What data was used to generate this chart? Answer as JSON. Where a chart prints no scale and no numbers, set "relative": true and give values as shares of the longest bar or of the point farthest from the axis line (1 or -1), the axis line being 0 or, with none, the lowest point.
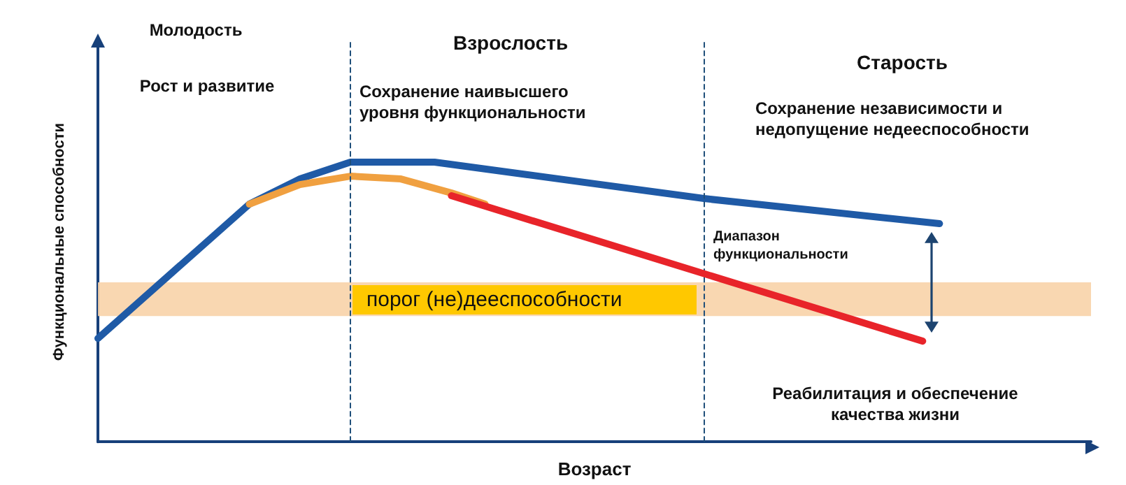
{
  "chart_data": {
    "type": "line",
    "relative": true,
    "xlabel": "Возраст",
    "ylabel": "Функциональные способности",
    "grid": false,
    "line_style": "solid",
    "categories": [
      null,
      null,
      null,
      null,
      null,
      null,
      null,
      null,
      null,
      null,
      null,
      null,
      null,
      null,
      null,
      null,
      null,
      null,
      null,
      null,
      null,
      null,
      null,
      null,
      null,
      null,
      null,
      null,
      null,
      null,
      null,
      null,
      null,
      null,
      null,
      null,
      null,
      null,
      null,
      null,
      null,
      null,
      null,
      null,
      null,
      null,
      null,
      null,
      null,
      null,
      null,
      null,
      null,
      null,
      null,
      null,
      null,
      null,
      null,
      null
    ],
    "series": [
      {
        "color": "#1f5aa6",
        "values": [
          0.37,
          null,
          null,
          null,
          null,
          null,
          null,
          null,
          null,
          0.85,
          null,
          null,
          0.94,
          null,
          null,
          1,
          null,
          null,
          null,
          null,
          1,
          null,
          null,
          null,
          null,
          null,
          null,
          null,
          null,
          null,
          null,
          null,
          null,
          null,
          null,
          null,
          0.87,
          null,
          null,
          null,
          null,
          null,
          null,
          null,
          null,
          null,
          null,
          null,
          null,
          null,
          0.78,
          null,
          null,
          null,
          null,
          null,
          null,
          null,
          null,
          null
        ]
      },
      {
        "color": "#f0a040",
        "values": [
          null,
          null,
          null,
          null,
          null,
          null,
          null,
          null,
          null,
          0.85,
          null,
          null,
          0.92,
          null,
          null,
          0.95,
          null,
          null,
          0.94,
          null,
          null,
          0.89,
          null,
          0.85,
          null,
          null,
          null,
          null,
          null,
          null,
          null,
          null,
          null,
          null,
          null,
          null,
          null,
          null,
          null,
          null,
          null,
          null,
          null,
          null,
          null,
          null,
          null,
          null,
          null,
          null,
          null,
          null,
          null,
          null,
          null,
          null,
          null,
          null,
          null,
          null
        ]
      },
      {
        "color": "#e8242a",
        "values": [
          null,
          null,
          null,
          null,
          null,
          null,
          null,
          null,
          null,
          null,
          null,
          null,
          null,
          null,
          null,
          null,
          null,
          null,
          null,
          null,
          null,
          0.88,
          null,
          null,
          null,
          null,
          null,
          null,
          null,
          null,
          null,
          null,
          null,
          null,
          null,
          null,
          null,
          null,
          null,
          null,
          null,
          null,
          null,
          null,
          null,
          null,
          null,
          null,
          null,
          0.36,
          null,
          null,
          null,
          null,
          null,
          null,
          null,
          null,
          null,
          null
        ]
      }
    ],
    "bands": [
      {
        "axis": "y",
        "from": 0.45,
        "to": 0.57,
        "label": "порог (не)дееспособности",
        "color": "#f8d3a8"
      }
    ],
    "annotations": [
      "Молодость",
      "Рост и развитие",
      "Взрослость",
      "Сохранение наивысшего\nуровня функциональности",
      "Старость",
      "Сохранение независимости и\nнедопущение недееспособности",
      "Диапазон\nфункциональности",
      "Реабилитация и обеспечение\nкачества жизни"
    ]
  }
}
